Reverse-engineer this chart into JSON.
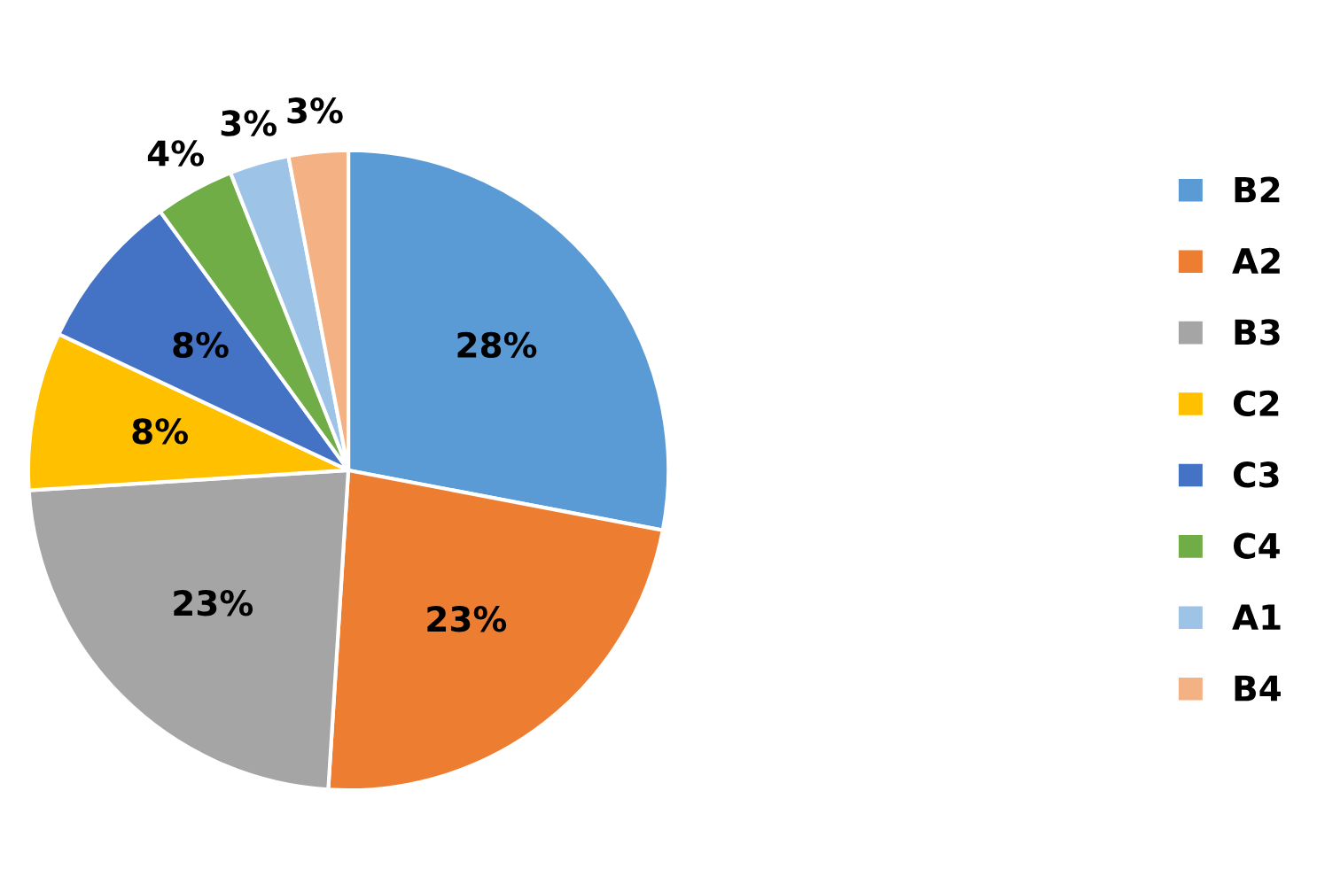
{
  "chart_data": {
    "type": "pie",
    "categories": [
      "B2",
      "A2",
      "B3",
      "C2",
      "C3",
      "C4",
      "A1",
      "B4"
    ],
    "values": [
      28,
      23,
      23,
      8,
      8,
      4,
      3,
      3
    ],
    "value_labels": [
      "28%",
      "23%",
      "23%",
      "8%",
      "8%",
      "4%",
      "3%",
      "3%"
    ],
    "colors": [
      "#5b9bd5",
      "#ed7d31",
      "#a5a5a5",
      "#ffc000",
      "#4472c4",
      "#70ad47",
      "#9dc3e6",
      "#f4b183"
    ],
    "legend": "right"
  }
}
